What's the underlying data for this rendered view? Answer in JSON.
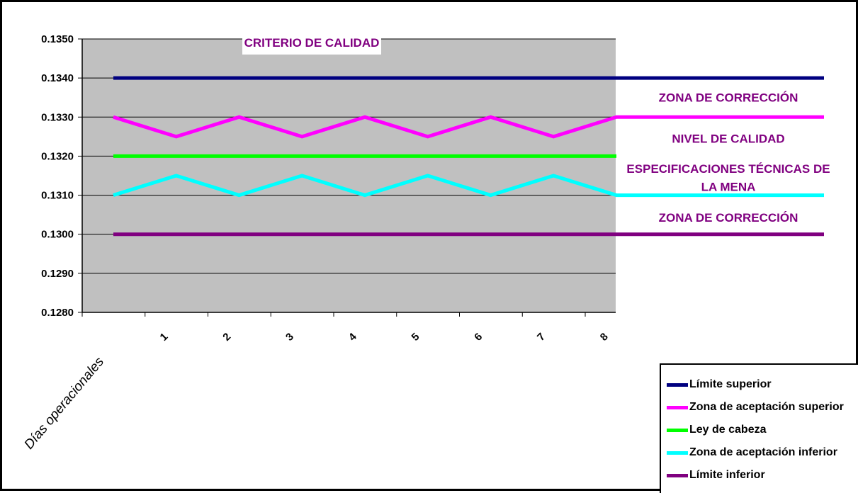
{
  "chart_data": {
    "type": "line",
    "title": "CRITERIO DE CALIDAD",
    "xlabel": "Días operacionales",
    "ylabel": "",
    "categories": [
      "1",
      "2",
      "3",
      "4",
      "5",
      "6",
      "7",
      "8"
    ],
    "x": [
      0,
      1,
      2,
      3,
      4,
      5,
      6,
      7,
      8
    ],
    "ylim": [
      0.128,
      0.135
    ],
    "ytick_step": 0.001,
    "yticks": [
      "0.1280",
      "0.1290",
      "0.1300",
      "0.1310",
      "0.1320",
      "0.1330",
      "0.1340",
      "0.1350"
    ],
    "grid": true,
    "plot_background": "#c0c0c0",
    "legend_position": "bottom-right",
    "series": [
      {
        "name": "Límite superior",
        "color": "#000080",
        "values": [
          0.134,
          0.134,
          0.134,
          0.134,
          0.134,
          0.134,
          0.134,
          0.134,
          0.134
        ],
        "extends_right": true
      },
      {
        "name": "Zona de aceptación superior",
        "color": "#ff00ff",
        "values": [
          0.133,
          0.1325,
          0.133,
          0.1325,
          0.133,
          0.1325,
          0.133,
          0.1325,
          0.133
        ],
        "extends_right": true
      },
      {
        "name": "Ley de cabeza",
        "color": "#00ff00",
        "values": [
          0.132,
          0.132,
          0.132,
          0.132,
          0.132,
          0.132,
          0.132,
          0.132,
          0.132
        ],
        "extends_right": false
      },
      {
        "name": "Zona de aceptación inferior",
        "color": "#00ffff",
        "values": [
          0.131,
          0.1315,
          0.131,
          0.1315,
          0.131,
          0.1315,
          0.131,
          0.1315,
          0.131
        ],
        "extends_right": true
      },
      {
        "name": "Límite inferior",
        "color": "#800080",
        "values": [
          0.13,
          0.13,
          0.13,
          0.13,
          0.13,
          0.13,
          0.13,
          0.13,
          0.13
        ],
        "extends_right": true
      }
    ],
    "annotations": [
      {
        "text": "ZONA DE CORRECCIÓN",
        "y": 0.1335
      },
      {
        "text": "NIVEL DE CALIDAD",
        "y": 0.13245
      },
      {
        "text": "ESPECIFICACIONES TÉCNICAS DE",
        "y": 0.13168
      },
      {
        "text": "LA MENA",
        "y": 0.13122
      },
      {
        "text": "ZONA DE CORRECCIÓN",
        "y": 0.13043
      }
    ]
  }
}
